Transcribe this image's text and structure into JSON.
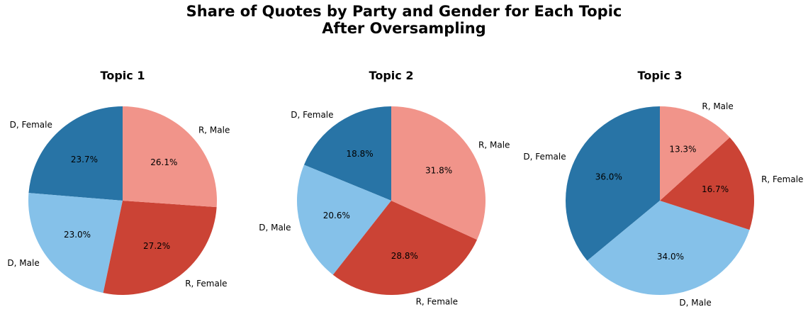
{
  "figure": {
    "title_line1": "Share of Quotes by Party and Gender for Each Topic",
    "title_line2": "After Oversampling"
  },
  "colors": {
    "D, Female": "#2874a6",
    "D, Male": "#85c1e9",
    "R, Female": "#cb4335",
    "R, Male": "#f1948a"
  },
  "chart_data": [
    {
      "type": "pie",
      "title": "Topic 1",
      "start_angle_deg": 90,
      "direction": "counterclockwise",
      "labels": [
        "D, Female",
        "D, Male",
        "R, Female",
        "R, Male"
      ],
      "values": [
        23.7,
        23.0,
        27.2,
        26.1
      ],
      "value_labels": [
        "23.7%",
        "23.0%",
        "27.2%",
        "26.1%"
      ]
    },
    {
      "type": "pie",
      "title": "Topic 2",
      "start_angle_deg": 90,
      "direction": "counterclockwise",
      "labels": [
        "D, Female",
        "D, Male",
        "R, Female",
        "R, Male"
      ],
      "values": [
        18.8,
        20.6,
        28.8,
        31.8
      ],
      "value_labels": [
        "18.8%",
        "20.6%",
        "28.8%",
        "31.8%"
      ]
    },
    {
      "type": "pie",
      "title": "Topic 3",
      "start_angle_deg": 90,
      "direction": "counterclockwise",
      "labels": [
        "D, Female",
        "D, Male",
        "R, Female",
        "R, Male"
      ],
      "values": [
        36.0,
        34.0,
        16.7,
        13.3
      ],
      "value_labels": [
        "36.0%",
        "34.0%",
        "16.7%",
        "13.3%"
      ]
    }
  ]
}
